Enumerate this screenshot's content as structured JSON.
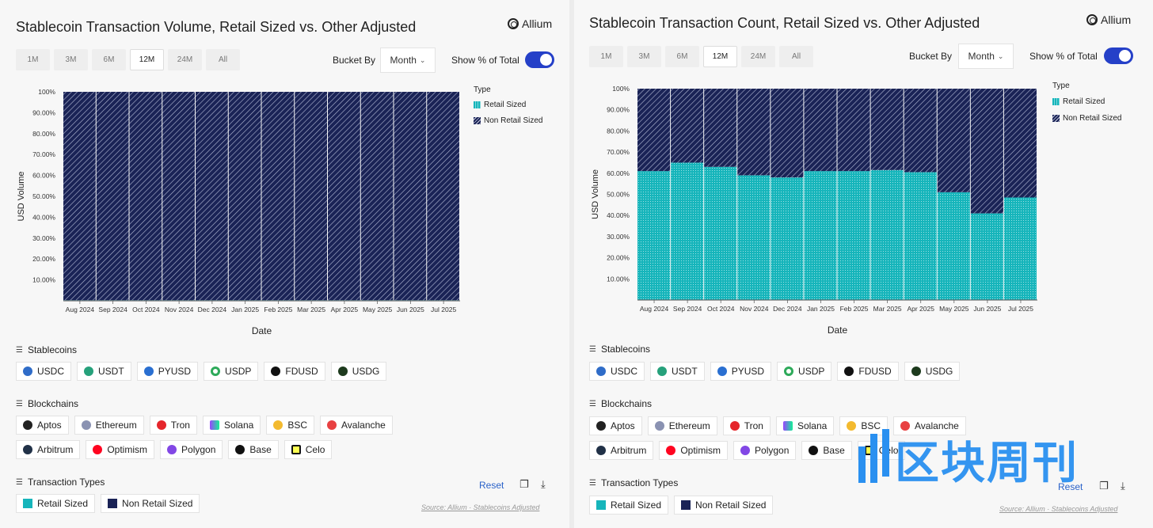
{
  "panels": [
    {
      "title": "Stablecoin Transaction Volume, Retail Sized vs. Other Adjusted",
      "brand": "Allium",
      "ranges": [
        "1M",
        "3M",
        "6M",
        "12M",
        "24M",
        "All"
      ],
      "active_range": "12M",
      "bucket_label": "Bucket By",
      "bucket_value": "Month",
      "pct_label": "Show % of Total",
      "legend_title": "Type",
      "legend": [
        "Retail Sized",
        "Non Retail Sized"
      ],
      "stablecoins_label": "Stablecoins",
      "stablecoins": [
        "USDC",
        "USDT",
        "PYUSD",
        "USDP",
        "FDUSD",
        "USDG"
      ],
      "blockchains_label": "Blockchains",
      "blockchains_row1": [
        "Aptos",
        "Ethereum",
        "Tron",
        "Solana",
        "BSC",
        "Avalanche"
      ],
      "blockchains_row2": [
        "Arbitrum",
        "Optimism",
        "Polygon",
        "Base",
        "Celo"
      ],
      "tx_types_label": "Transaction Types",
      "tx_types": [
        "Retail Sized",
        "Non Retail Sized"
      ],
      "reset": "Reset",
      "source": "Source: Allium · Stablecoins Adjusted"
    },
    {
      "title": "Stablecoin Transaction Count, Retail Sized vs. Other Adjusted",
      "brand": "Allium",
      "ranges": [
        "1M",
        "3M",
        "6M",
        "12M",
        "24M",
        "All"
      ],
      "active_range": "12M",
      "bucket_label": "Bucket By",
      "bucket_value": "Month",
      "pct_label": "Show % of Total",
      "legend_title": "Type",
      "legend": [
        "Retail Sized",
        "Non Retail Sized"
      ],
      "stablecoins_label": "Stablecoins",
      "stablecoins": [
        "USDC",
        "USDT",
        "PYUSD",
        "USDP",
        "FDUSD",
        "USDG"
      ],
      "blockchains_label": "Blockchains",
      "blockchains_row1": [
        "Aptos",
        "Ethereum",
        "Tron",
        "Solana",
        "BSC",
        "Avalanche"
      ],
      "blockchains_row2": [
        "Arbitrum",
        "Optimism",
        "Polygon",
        "Base",
        "Celo"
      ],
      "tx_types_label": "Transaction Types",
      "tx_types": [
        "Retail Sized",
        "Non Retail Sized"
      ],
      "reset": "Reset",
      "source": "Source: Allium · Stablecoins Adjusted"
    }
  ],
  "chart_data": [
    {
      "type": "bar",
      "stacked": true,
      "title": "Stablecoin Transaction Volume, Retail Sized vs. Other Adjusted",
      "xlabel": "Date",
      "ylabel": "USD Volume",
      "categories": [
        "Aug 2024",
        "Sep 2024",
        "Oct 2024",
        "Nov 2024",
        "Dec 2024",
        "Jan 2025",
        "Feb 2025",
        "Mar 2025",
        "Apr 2025",
        "May 2025",
        "Jun 2025",
        "Jul 2025"
      ],
      "yticks": [
        "10.00%",
        "20.00%",
        "30.00%",
        "40.00%",
        "50.00%",
        "60.00%",
        "70.00%",
        "80.00%",
        "90.00%",
        "100%"
      ],
      "ylim": [
        0,
        100
      ],
      "series": [
        {
          "name": "Retail Sized",
          "values": [
            0.3,
            0.3,
            0.3,
            0.3,
            0.3,
            0.3,
            0.3,
            0.3,
            0.3,
            0.3,
            0.3,
            0.3
          ]
        },
        {
          "name": "Non Retail Sized",
          "values": [
            99.7,
            99.7,
            99.7,
            99.7,
            99.7,
            99.7,
            99.7,
            99.7,
            99.7,
            99.7,
            99.7,
            99.7
          ]
        }
      ]
    },
    {
      "type": "bar",
      "stacked": true,
      "title": "Stablecoin Transaction Count, Retail Sized vs. Other Adjusted",
      "xlabel": "Date",
      "ylabel": "USD Volume",
      "categories": [
        "Aug 2024",
        "Sep 2024",
        "Oct 2024",
        "Nov 2024",
        "Dec 2024",
        "Jan 2025",
        "Feb 2025",
        "Mar 2025",
        "Apr 2025",
        "May 2025",
        "Jun 2025",
        "Jul 2025"
      ],
      "yticks": [
        "10.00%",
        "20.00%",
        "30.00%",
        "40.00%",
        "50.00%",
        "60.00%",
        "70.00%",
        "80.00%",
        "90.00%",
        "100%"
      ],
      "ylim": [
        0,
        100
      ],
      "series": [
        {
          "name": "Retail Sized",
          "values": [
            61,
            65,
            63,
            59,
            58,
            61,
            61,
            61.5,
            60.5,
            51,
            41,
            48.5
          ]
        },
        {
          "name": "Non Retail Sized",
          "values": [
            39,
            35,
            37,
            41,
            42,
            39,
            39,
            38.5,
            39.5,
            49,
            59,
            51.5
          ]
        }
      ]
    }
  ],
  "colors": {
    "retail": "#16b5bb",
    "non_retail": "#1a2356",
    "toggle": "#2540c8",
    "reset": "#2a62c9"
  },
  "watermark": "区块周刊"
}
